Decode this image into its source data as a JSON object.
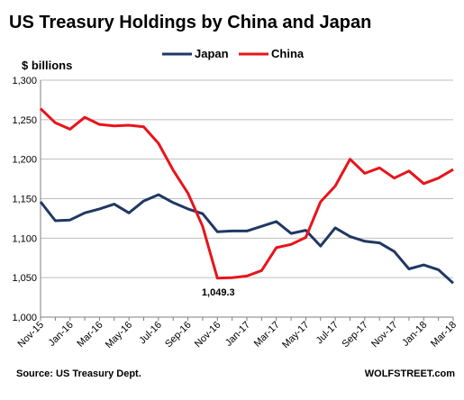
{
  "chart_data": {
    "type": "line",
    "title": "US Treasury Holdings by China and Japan",
    "ylabel": "$ billions",
    "ylim": [
      1000,
      1300
    ],
    "yticks": [
      1000,
      1050,
      1100,
      1150,
      1200,
      1250,
      1300
    ],
    "ytick_labels": [
      "1,000",
      "1,050",
      "1,100",
      "1,150",
      "1,200",
      "1,250",
      "1,300"
    ],
    "x": [
      "Nov-15",
      "Dec-15",
      "Jan-16",
      "Feb-16",
      "Mar-16",
      "Apr-16",
      "May-16",
      "Jun-16",
      "Jul-16",
      "Aug-16",
      "Sep-16",
      "Oct-16",
      "Nov-16",
      "Dec-16",
      "Jan-17",
      "Feb-17",
      "Mar-17",
      "Apr-17",
      "May-17",
      "Jun-17",
      "Jul-17",
      "Aug-17",
      "Sep-17",
      "Oct-17",
      "Nov-17",
      "Dec-17",
      "Jan-18",
      "Feb-18",
      "Mar-18"
    ],
    "xtick_labels": [
      "Nov-15",
      "Jan-16",
      "Mar-16",
      "May-16",
      "Jul-16",
      "Sep-16",
      "Nov-16",
      "Jan-17",
      "Mar-17",
      "May-17",
      "Jul-17",
      "Sep-17",
      "Nov-17",
      "Jan-18",
      "Mar-18"
    ],
    "grid": true,
    "legend": "top-center",
    "series": [
      {
        "name": "Japan",
        "color": "#1f3864",
        "values": [
          1146,
          1122,
          1123,
          1132,
          1137,
          1143,
          1132,
          1147,
          1155,
          1145,
          1137,
          1131,
          1108,
          1109,
          1109,
          1115,
          1121,
          1106,
          1110,
          1090,
          1113,
          1102,
          1096,
          1094,
          1083,
          1061,
          1066,
          1060,
          1043
        ]
      },
      {
        "name": "China",
        "color": "#e8141b",
        "values": [
          1264,
          1246,
          1238,
          1253,
          1244,
          1242,
          1243,
          1241,
          1220,
          1186,
          1157,
          1115,
          1049.3,
          1050,
          1052,
          1059,
          1088,
          1092,
          1101,
          1146,
          1166,
          1200,
          1182,
          1189,
          1176,
          1185,
          1169,
          1176,
          1187
        ]
      }
    ],
    "annotation": {
      "text": "1,049.3",
      "series": "China",
      "x": "Nov-16",
      "value": 1049.3
    }
  },
  "source": "Source: US Treasury Dept.",
  "brand": "WOLFSTREET.com"
}
